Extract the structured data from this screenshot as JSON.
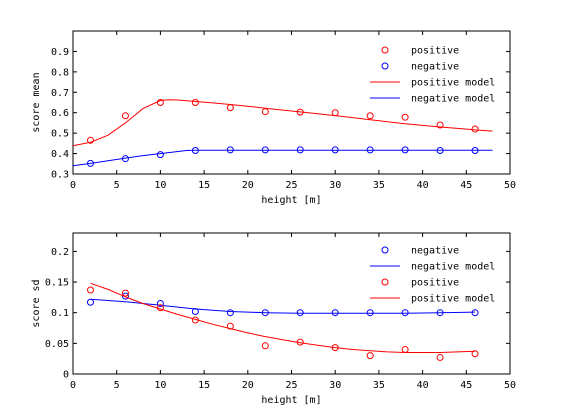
{
  "colors": {
    "positive": "#ff0000",
    "negative": "#0000ff",
    "axes": "#000000",
    "background": "#ffffff"
  },
  "chart_data": [
    {
      "type": "scatter",
      "xlabel": "height [m]",
      "ylabel": "score mean",
      "xlim": [
        0,
        50
      ],
      "ylim": [
        0.3,
        1.0
      ],
      "xticks": [
        "0",
        "5",
        "10",
        "15",
        "20",
        "25",
        "30",
        "35",
        "40",
        "45",
        "50"
      ],
      "yticks": [
        "0.3",
        "0.4",
        "0.5",
        "0.6",
        "0.7",
        "0.8",
        "0.9"
      ],
      "grid": false,
      "legend_position": "top-right",
      "series": [
        {
          "name": "positive",
          "kind": "markers",
          "color": "#ff0000",
          "x": [
            2,
            6,
            10,
            14,
            18,
            22,
            26,
            30,
            34,
            38,
            42,
            46
          ],
          "y": [
            0.465,
            0.585,
            0.65,
            0.65,
            0.625,
            0.605,
            0.603,
            0.6,
            0.585,
            0.578,
            0.54,
            0.52
          ]
        },
        {
          "name": "negative",
          "kind": "markers",
          "color": "#0000ff",
          "x": [
            2,
            6,
            10,
            14,
            18,
            22,
            26,
            30,
            34,
            38,
            42,
            46
          ],
          "y": [
            0.352,
            0.375,
            0.395,
            0.415,
            0.418,
            0.418,
            0.418,
            0.418,
            0.418,
            0.418,
            0.415,
            0.415
          ]
        },
        {
          "name": "positive model",
          "kind": "line",
          "color": "#ff0000",
          "x": [
            0,
            2,
            4,
            6,
            8,
            10,
            11,
            12,
            14,
            16,
            18,
            20,
            22,
            24,
            26,
            28,
            30,
            32,
            34,
            36,
            38,
            40,
            42,
            44,
            46,
            48
          ],
          "y": [
            0.438,
            0.455,
            0.49,
            0.55,
            0.62,
            0.66,
            0.663,
            0.662,
            0.655,
            0.648,
            0.64,
            0.632,
            0.622,
            0.613,
            0.604,
            0.595,
            0.586,
            0.576,
            0.566,
            0.556,
            0.546,
            0.538,
            0.53,
            0.523,
            0.516,
            0.51
          ]
        },
        {
          "name": "negative model",
          "kind": "line",
          "color": "#0000ff",
          "x": [
            0,
            2,
            4,
            6,
            8,
            10,
            12,
            13,
            14,
            16,
            20,
            30,
            40,
            48
          ],
          "y": [
            0.34,
            0.352,
            0.365,
            0.378,
            0.39,
            0.4,
            0.41,
            0.415,
            0.416,
            0.416,
            0.416,
            0.416,
            0.416,
            0.416
          ]
        }
      ]
    },
    {
      "type": "scatter",
      "xlabel": "height [m]",
      "ylabel": "score sd",
      "xlim": [
        0,
        50
      ],
      "ylim": [
        0,
        0.23
      ],
      "xticks": [
        "0",
        "5",
        "10",
        "15",
        "20",
        "25",
        "30",
        "35",
        "40",
        "45",
        "50"
      ],
      "yticks": [
        "0",
        "0.05",
        "0.1",
        "0.15",
        "0.2"
      ],
      "grid": false,
      "legend_position": "top-right",
      "series": [
        {
          "name": "negative",
          "kind": "markers",
          "color": "#0000ff",
          "x": [
            2,
            6,
            10,
            14,
            18,
            22,
            26,
            30,
            34,
            38,
            42,
            46
          ],
          "y": [
            0.117,
            0.127,
            0.115,
            0.102,
            0.1,
            0.1,
            0.1,
            0.1,
            0.1,
            0.1,
            0.1,
            0.1
          ]
        },
        {
          "name": "negative model",
          "kind": "line",
          "color": "#0000ff",
          "x": [
            2,
            6,
            10,
            14,
            18,
            22,
            26,
            30,
            34,
            38,
            42,
            46
          ],
          "y": [
            0.122,
            0.118,
            0.112,
            0.106,
            0.102,
            0.1,
            0.099,
            0.099,
            0.099,
            0.099,
            0.1,
            0.101
          ]
        },
        {
          "name": "positive",
          "kind": "markers",
          "color": "#ff0000",
          "x": [
            2,
            6,
            10,
            14,
            18,
            22,
            26,
            30,
            34,
            38,
            42,
            46
          ],
          "y": [
            0.137,
            0.132,
            0.108,
            0.088,
            0.078,
            0.046,
            0.052,
            0.043,
            0.03,
            0.04,
            0.027,
            0.033
          ]
        },
        {
          "name": "positive model",
          "kind": "line",
          "color": "#ff0000",
          "x": [
            2,
            4,
            6,
            8,
            10,
            12,
            14,
            16,
            18,
            20,
            22,
            24,
            26,
            28,
            30,
            32,
            34,
            36,
            38,
            40,
            42,
            44,
            46
          ],
          "y": [
            0.148,
            0.138,
            0.126,
            0.115,
            0.106,
            0.097,
            0.089,
            0.081,
            0.074,
            0.067,
            0.061,
            0.056,
            0.051,
            0.047,
            0.043,
            0.04,
            0.038,
            0.036,
            0.035,
            0.035,
            0.035,
            0.036,
            0.037
          ]
        }
      ]
    }
  ]
}
